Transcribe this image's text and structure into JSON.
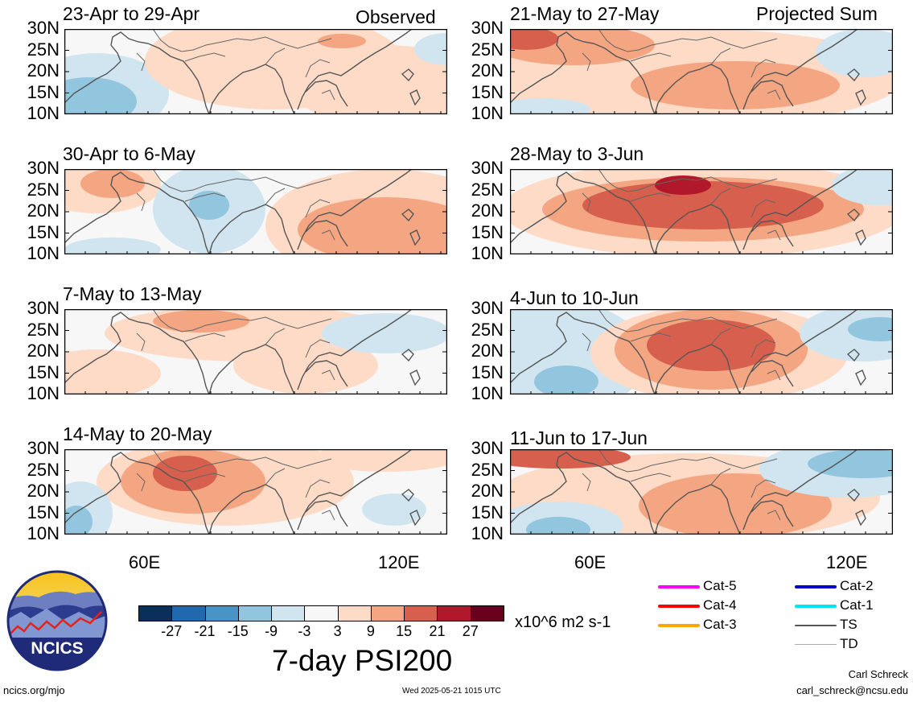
{
  "panels": [
    {
      "title": "23-Apr to 29-Apr",
      "corner": "Observed",
      "pattern": "p1"
    },
    {
      "title": "21-May to 27-May",
      "corner": "Projected Sum",
      "pattern": "p5"
    },
    {
      "title": "30-Apr to 6-May",
      "corner": "",
      "pattern": "p2"
    },
    {
      "title": "28-May to 3-Jun",
      "corner": "",
      "pattern": "p6"
    },
    {
      "title": "7-May to 13-May",
      "corner": "",
      "pattern": "p3"
    },
    {
      "title": "4-Jun to 10-Jun",
      "corner": "",
      "pattern": "p7"
    },
    {
      "title": "14-May to 20-May",
      "corner": "",
      "pattern": "p4"
    },
    {
      "title": "11-Jun to 17-Jun",
      "corner": "",
      "pattern": "p8"
    }
  ],
  "lat_labels": [
    "30N",
    "25N",
    "20N",
    "15N",
    "10N"
  ],
  "lon_labels": [
    "60E",
    "120E"
  ],
  "colorbar": {
    "colors": [
      "#0b2f5b",
      "#2268ad",
      "#4994c4",
      "#92c5de",
      "#d1e5f0",
      "#f7f7f7",
      "#fddbc7",
      "#f4a582",
      "#d6604d",
      "#b2182b",
      "#67001f"
    ],
    "ticks": [
      "-27",
      "-21",
      "-15",
      "-9",
      "-3",
      "3",
      "9",
      "15",
      "21",
      "27"
    ],
    "units": "x10^6 m2 s-1",
    "title": "7-day PSI200"
  },
  "legend": [
    {
      "label": "Cat-5",
      "color": "#ff00ff"
    },
    {
      "label": "Cat-4",
      "color": "#ff0000"
    },
    {
      "label": "Cat-3",
      "color": "#ffa500"
    },
    {
      "label": "Cat-2",
      "color": "#0000cd"
    },
    {
      "label": "Cat-1",
      "color": "#00e5ee"
    },
    {
      "label": "TS",
      "color": "#555555"
    },
    {
      "label": "TD",
      "color": "#aaaaaa"
    }
  ],
  "logo": {
    "text": "NCICS"
  },
  "footer": {
    "url": "ncics.org/mjo",
    "timestamp": "Wed 2025-05-21 1015 UTC",
    "author": "Carl Schreck",
    "email": "carl_schreck@ncsu.edu"
  }
}
